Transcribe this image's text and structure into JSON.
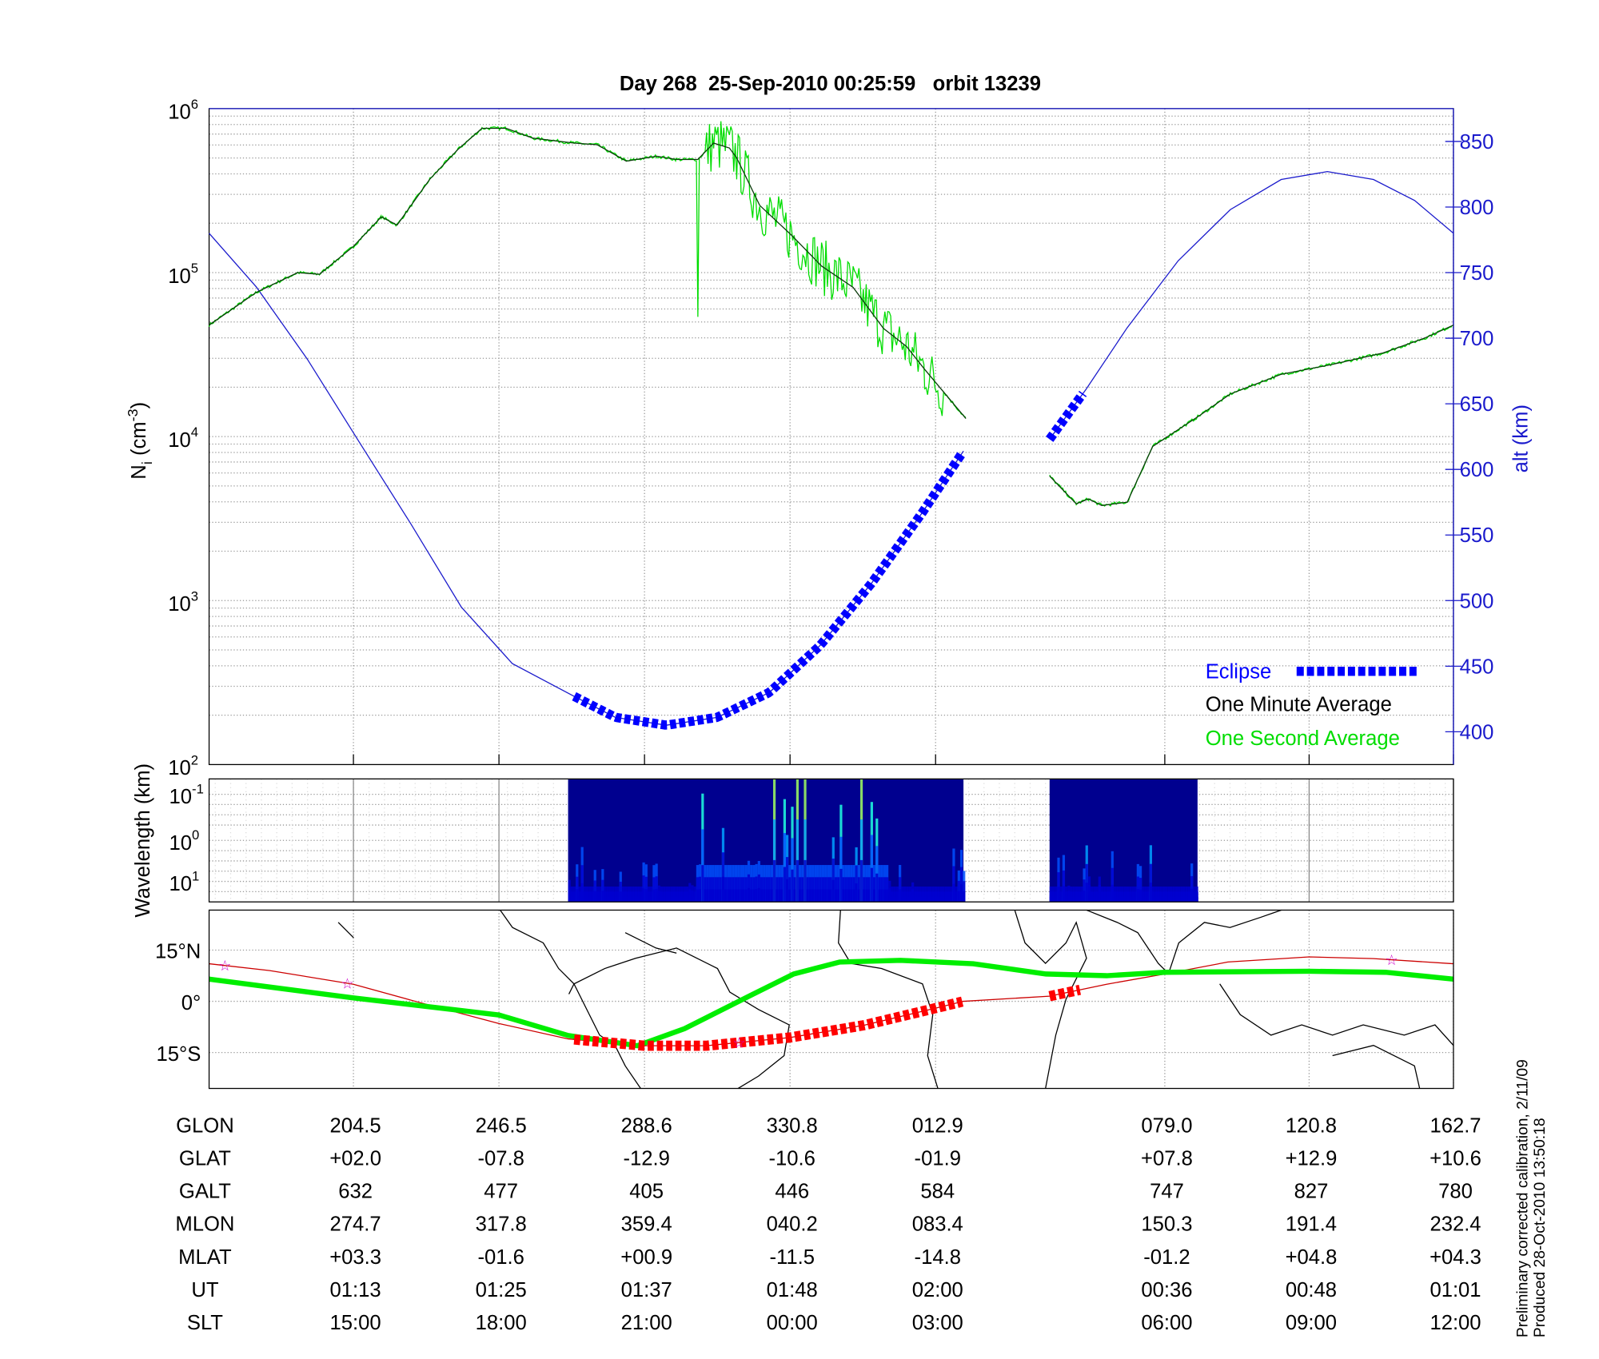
{
  "chart_data": [
    {
      "type": "line",
      "title": "Day 268  25-Sep-2010 00:25:59   orbit 13239",
      "ylabel": "N",
      "ylabel_sub": "i",
      "ylabel_unit": " (cm",
      "ylabel_exp": "-3",
      "ylabel_close": ")",
      "yscale": "log",
      "ylim": [
        100,
        1000000
      ],
      "ytick_labels": [
        {
          "base": "10",
          "exp": "2"
        },
        {
          "base": "10",
          "exp": "3"
        },
        {
          "base": "10",
          "exp": "4"
        },
        {
          "base": "10",
          "exp": "5"
        },
        {
          "base": "10",
          "exp": "6"
        }
      ],
      "y2label": "alt (km)",
      "y2lim": [
        375,
        875
      ],
      "y2ticks": [
        "400",
        "450",
        "500",
        "550",
        "600",
        "650",
        "700",
        "750",
        "800",
        "850"
      ],
      "xlim_minutes": [
        0,
        102.6
      ],
      "xtick_minutes": [
        11.9,
        23.9,
        35.9,
        47.9,
        59.9,
        78.8,
        90.7,
        102.6
      ],
      "grid": true,
      "legend_position": "bottom-right",
      "legend": [
        {
          "label": "Eclipse",
          "color": "#0000ff"
        },
        {
          "label": "One Minute Average",
          "color": "#000000"
        },
        {
          "label": "One Second Average",
          "color": "#00dd00"
        }
      ],
      "series": [
        {
          "name": "One Minute Average (log10 Ni)",
          "segments": [
            [
              [
                0,
                4.68
              ],
              [
                3.9,
                4.88
              ],
              [
                7.3,
                5.0
              ],
              [
                9.1,
                4.99
              ],
              [
                11.9,
                5.16
              ],
              [
                14.2,
                5.34
              ],
              [
                15.5,
                5.29
              ],
              [
                18.2,
                5.57
              ],
              [
                20.5,
                5.75
              ],
              [
                22.5,
                5.88
              ],
              [
                24.5,
                5.88
              ],
              [
                26.7,
                5.82
              ],
              [
                30.1,
                5.79
              ],
              [
                32,
                5.78
              ],
              [
                34.4,
                5.68
              ],
              [
                36.9,
                5.71
              ],
              [
                38.5,
                5.69
              ],
              [
                40.3,
                5.69
              ],
              [
                41.6,
                5.79
              ],
              [
                42.9,
                5.76
              ],
              [
                43.5,
                5.7
              ],
              [
                45.4,
                5.41
              ],
              [
                48.0,
                5.23
              ],
              [
                50.5,
                5.04
              ],
              [
                53.1,
                4.91
              ],
              [
                55.6,
                4.66
              ],
              [
                57.5,
                4.55
              ],
              [
                59.0,
                4.41
              ],
              [
                60.7,
                4.26
              ],
              [
                62.4,
                4.11
              ]
            ],
            [
              [
                69.3,
                3.76
              ],
              [
                71.5,
                3.59
              ],
              [
                72.5,
                3.62
              ],
              [
                73.6,
                3.58
              ],
              [
                75.7,
                3.6
              ],
              [
                77.8,
                3.94
              ],
              [
                81.7,
                4.13
              ],
              [
                84.2,
                4.26
              ],
              [
                88.4,
                4.38
              ],
              [
                92.6,
                4.44
              ],
              [
                96.8,
                4.51
              ],
              [
                100.2,
                4.6
              ],
              [
                102.6,
                4.68
              ]
            ]
          ]
        },
        {
          "name": "Altitude (km)",
          "segments": [
            [
              [
                0,
                780
              ],
              [
                3.9,
                739
              ],
              [
                8.1,
                684
              ],
              [
                12.3,
                622
              ],
              [
                16.6,
                559
              ],
              [
                20.8,
                495
              ],
              [
                25.0,
                452
              ],
              [
                30.1,
                427
              ],
              [
                33.5,
                411
              ],
              [
                37.7,
                405
              ],
              [
                41.9,
                411
              ],
              [
                46.2,
                430
              ],
              [
                50.4,
                466
              ],
              [
                54.6,
                513
              ],
              [
                58.8,
                567
              ],
              [
                62.2,
                614
              ]
            ],
            [
              [
                69.3,
                623
              ],
              [
                72.3,
                661
              ],
              [
                75.7,
                708
              ],
              [
                79.9,
                759
              ],
              [
                84.2,
                798
              ],
              [
                88.4,
                821
              ],
              [
                92.2,
                827
              ],
              [
                96.0,
                821
              ],
              [
                99.4,
                805
              ],
              [
                102.6,
                780
              ]
            ]
          ]
        }
      ],
      "eclipse_intervals_minutes": [
        [
          30.1,
          62.2
        ],
        [
          69.3,
          72.2
        ]
      ]
    },
    {
      "type": "heatmap",
      "ylabel": "Wavelength (km)",
      "ytick_labels": [
        {
          "base": "10",
          "exp": "-1"
        },
        {
          "base": "10",
          "exp": "0"
        },
        {
          "base": "10",
          "exp": "1"
        }
      ],
      "data_intervals_minutes": [
        [
          29.6,
          62.2
        ],
        [
          69.3,
          81.5
        ]
      ],
      "colormap": [
        "#00008f",
        "#0000ff",
        "#00ffff",
        "#ffff00",
        "#ff0000"
      ]
    },
    {
      "type": "line",
      "name": "ground track map",
      "ytick_labels": [
        "15°N",
        "0°",
        "15°S"
      ],
      "ylim_deg": [
        -25.5,
        26.7
      ],
      "series": [
        {
          "name": "orbit track (lat deg)",
          "color": "#cc0000",
          "points": [
            [
              0,
              11
            ],
            [
              5,
              9
            ],
            [
              11.9,
              5
            ],
            [
              17,
              0
            ],
            [
              23.9,
              -6.5
            ],
            [
              29.6,
              -11
            ],
            [
              35.9,
              -13
            ],
            [
              41,
              -13
            ],
            [
              47.9,
              -10.6
            ],
            [
              54,
              -7
            ],
            [
              59.9,
              -2
            ],
            [
              62.2,
              0
            ],
            [
              69.3,
              1.5
            ],
            [
              74,
              5
            ],
            [
              78.8,
              8
            ],
            [
              84,
              11.5
            ],
            [
              90.7,
              13
            ],
            [
              96,
              12.5
            ],
            [
              102.6,
              11
            ]
          ]
        },
        {
          "name": "magnetic equator (lat deg)",
          "color": "#00ee00",
          "points": [
            [
              0,
              6.5
            ],
            [
              11.9,
              1
            ],
            [
              23.9,
              -4
            ],
            [
              29.6,
              -10
            ],
            [
              35.3,
              -13
            ],
            [
              39.2,
              -8
            ],
            [
              44.8,
              2
            ],
            [
              48.2,
              8
            ],
            [
              52,
              11.5
            ],
            [
              57,
              12
            ],
            [
              63,
              11
            ],
            [
              69,
              8
            ],
            [
              74,
              7.5
            ],
            [
              78.8,
              8.5
            ],
            [
              90.7,
              8.8
            ],
            [
              97,
              8.5
            ],
            [
              102.6,
              6.5
            ]
          ]
        }
      ],
      "eclipse_track_intervals_minutes": [
        [
          30.1,
          62.2
        ],
        [
          69.3,
          71.8
        ]
      ],
      "star_markers_minutes": [
        1.3,
        11.4,
        43.7,
        97.5
      ]
    }
  ],
  "table": {
    "row_labels": [
      "GLON",
      "GLAT",
      "GALT",
      "MLON",
      "MLAT",
      "UT",
      "SLT"
    ],
    "columns": [
      [
        "204.5",
        "+02.0",
        "632",
        "274.7",
        "+03.3",
        "01:13",
        "15:00"
      ],
      [
        "246.5",
        "-07.8",
        "477",
        "317.8",
        "-01.6",
        "01:25",
        "18:00"
      ],
      [
        "288.6",
        "-12.9",
        "405",
        "359.4",
        "+00.9",
        "01:37",
        "21:00"
      ],
      [
        "330.8",
        "-10.6",
        "446",
        "040.2",
        "-11.5",
        "01:48",
        "00:00"
      ],
      [
        "012.9",
        "-01.9",
        "584",
        "083.4",
        "-14.8",
        "02:00",
        "03:00"
      ],
      [
        "079.0",
        "+07.8",
        "747",
        "150.3",
        "-01.2",
        "00:36",
        "06:00"
      ],
      [
        "120.8",
        "+12.9",
        "827",
        "191.4",
        "+04.8",
        "00:48",
        "09:00"
      ],
      [
        "162.7",
        "+10.6",
        "780",
        "232.4",
        "+04.3",
        "01:01",
        "12:00"
      ]
    ]
  },
  "footer": {
    "line1": "Preliminary corrected calibration, 2/11/09",
    "line2": "Produced 28-Oct-2010 13:50:18"
  }
}
